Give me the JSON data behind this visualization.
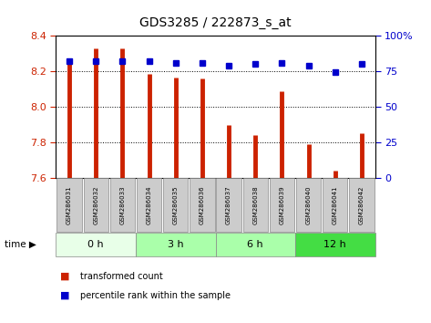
{
  "title": "GDS3285 / 222873_s_at",
  "samples": [
    "GSM286031",
    "GSM286032",
    "GSM286033",
    "GSM286034",
    "GSM286035",
    "GSM286036",
    "GSM286037",
    "GSM286038",
    "GSM286039",
    "GSM286040",
    "GSM286041",
    "GSM286042"
  ],
  "transformed_count": [
    8.25,
    8.33,
    8.33,
    8.185,
    8.165,
    8.16,
    7.895,
    7.84,
    8.085,
    7.79,
    7.64,
    7.85
  ],
  "percentile_rank": [
    82,
    82,
    82,
    82,
    81,
    81,
    79,
    80,
    81,
    79,
    74,
    80
  ],
  "ylim_left": [
    7.6,
    8.4
  ],
  "ylim_right": [
    0,
    100
  ],
  "yticks_left": [
    7.6,
    7.8,
    8.0,
    8.2,
    8.4
  ],
  "yticks_right": [
    0,
    25,
    50,
    75,
    100
  ],
  "groups": [
    {
      "label": "0 h",
      "start": 0,
      "end": 3,
      "color": "#e8ffe8"
    },
    {
      "label": "3 h",
      "start": 3,
      "end": 6,
      "color": "#aaffaa"
    },
    {
      "label": "6 h",
      "start": 6,
      "end": 9,
      "color": "#aaffaa"
    },
    {
      "label": "12 h",
      "start": 9,
      "end": 12,
      "color": "#44dd44"
    }
  ],
  "bar_color": "#cc2200",
  "dot_color": "#0000cc",
  "baseline": 7.6,
  "sample_box_color": "#cccccc",
  "time_label": "time ▶"
}
